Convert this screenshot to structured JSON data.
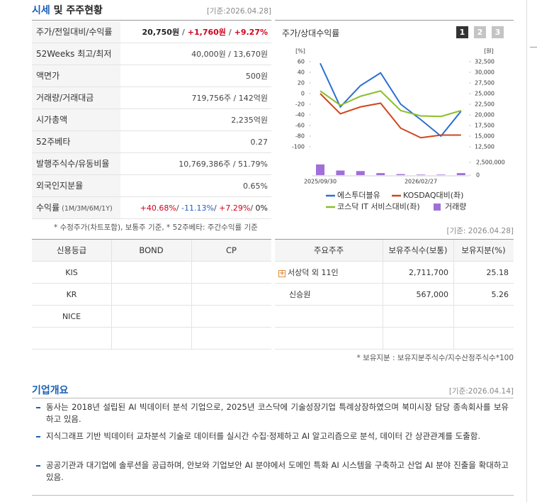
{
  "header": {
    "title_main": "시세",
    "title_rest": "및 주주현황",
    "date": "[기준:2026.04.28]"
  },
  "price_table": {
    "rows": [
      {
        "label": "주가/전일대비/수익률",
        "value": [
          {
            "text": "20,750원",
            "color": "#222222"
          },
          {
            "text": " / ",
            "color": "#666666"
          },
          {
            "text": "+1,760원",
            "color": "#d0021b"
          },
          {
            "text": " / ",
            "color": "#666666"
          },
          {
            "text": "+9.27%",
            "color": "#d0021b"
          }
        ]
      },
      {
        "label": "52Weeks 최고/최저",
        "value": [
          {
            "text": "40,000원 / 13,670원",
            "color": "#444444"
          }
        ]
      },
      {
        "label": "액면가",
        "value": [
          {
            "text": "500원",
            "color": "#444444"
          }
        ]
      },
      {
        "label": "거래량/거래대금",
        "value": [
          {
            "text": "719,756주 / 142억원",
            "color": "#444444"
          }
        ]
      },
      {
        "label": "시가총액",
        "value": [
          {
            "text": "2,235억원",
            "color": "#444444"
          }
        ]
      },
      {
        "label": "52주베타",
        "value": [
          {
            "text": "0.27",
            "color": "#444444"
          }
        ]
      },
      {
        "label": "발행주식수/유동비율",
        "value": [
          {
            "text": "10,769,386주 / 51.79%",
            "color": "#444444"
          }
        ]
      },
      {
        "label": "외국인지분율",
        "value": [
          {
            "text": "0.65%",
            "color": "#444444"
          }
        ]
      },
      {
        "label": "수익률",
        "label_sub": "(1M/3M/6M/1Y)",
        "value": [
          {
            "text": "+40.68%",
            "color": "#d0021b"
          },
          {
            "text": "/ ",
            "color": "#444444"
          },
          {
            "text": "-11.13%",
            "color": "#1f5fc8"
          },
          {
            "text": "/ ",
            "color": "#444444"
          },
          {
            "text": "+7.29%",
            "color": "#d0021b"
          },
          {
            "text": "/ ",
            "color": "#444444"
          },
          {
            "text": "0%",
            "color": "#222222"
          }
        ]
      }
    ],
    "note": "* 수정주가(차트포함), 보통주 기준, * 52주베타: 주간수익률 기준"
  },
  "chart_panel": {
    "title": "주가/상대수익률",
    "buttons": [
      "1",
      "2",
      "3"
    ],
    "date": "[기준: 2026.04.28]"
  },
  "chart_data": {
    "type": "line",
    "y_unit": "[%]",
    "y2_unit": "[원]",
    "categories": [
      "2025/09/30",
      null,
      null,
      null,
      null,
      "2026/02/27",
      null,
      null
    ],
    "ylim": [
      -100,
      60
    ],
    "yticks": [
      60,
      40,
      20,
      0,
      -20,
      -40,
      -60,
      -80,
      -100
    ],
    "y2lim": [
      12500,
      32500
    ],
    "y2ticks": [
      {
        "value": 32500,
        "label": "32,500"
      },
      {
        "value": 30000,
        "label": "30,000"
      },
      {
        "value": 27500,
        "label": "27,500"
      },
      {
        "value": 25000,
        "label": "25,000"
      },
      {
        "value": 22500,
        "label": "22,500"
      },
      {
        "value": 20000,
        "label": "20,000"
      },
      {
        "value": 17500,
        "label": "17,500"
      },
      {
        "value": 15000,
        "label": "15,000"
      },
      {
        "value": 12500,
        "label": "12,500"
      }
    ],
    "volume_lim": [
      0,
      3000000
    ],
    "volume_ticks": [
      {
        "value": 2500000,
        "label": "2,500,000"
      },
      0
    ],
    "series": [
      {
        "name": "에스투더블유",
        "color": "#2b6fd1",
        "values": [
          57,
          -25,
          15,
          39,
          -20,
          -49,
          -80,
          -33
        ]
      },
      {
        "name": "KOSDAQ대비(좌)",
        "color": "#d0461b",
        "values": [
          0,
          -38,
          -25,
          -18,
          -65,
          -83,
          -78,
          -78
        ]
      },
      {
        "name": "코스닥 IT 서비스대비(좌)",
        "color": "#8bbf2b",
        "values": [
          5,
          -22,
          -5,
          5,
          -32,
          -42,
          -43,
          -32
        ]
      },
      {
        "name": "거래량",
        "color": "#a070d8",
        "type": "bar",
        "axis": "volume",
        "values": [
          2100000,
          900000,
          800000,
          400000,
          200000,
          100000,
          100000,
          400000
        ]
      }
    ]
  },
  "credit_table": {
    "headers": [
      "신용등급",
      "BOND",
      "CP"
    ],
    "rows": [
      [
        "KIS"
      ],
      [
        "KR"
      ],
      [
        "NICE"
      ]
    ]
  },
  "holders_table": {
    "headers": [
      "주요주주",
      "보유주식수(보통)",
      "보유지분(%)"
    ],
    "rows": [
      [
        "서상덕 외 11인",
        "2,711,700",
        "25.18"
      ],
      [
        "신승원",
        "567,000",
        "5.26"
      ]
    ],
    "note": "* 보유지분 : 보유지분주식수/지수산정주식수*100"
  },
  "overview": {
    "title": "기업개요",
    "date": "[기준:2026.04.14]",
    "items": [
      "동사는 2018년 설립된 AI 빅데이터 분석 기업으로, 2025년 코스닥에 기술성장기업 특례상장하였으며 북미시장 담당 종속회사를 보유하고 있음.",
      "지식그래프 기반 빅데이터 교차분석 기술로 데이터를 실시간 수집·정제하고 AI 알고리즘으로 분석, 데이터 간 상관관계를 도출함.",
      "공공기관과 대기업에 솔루션을 공급하며, 안보와 기업보안 AI 분야에서 도메인 특화 AI 시스템을 구축하고 산업 AI 분야 진출을 확대하고 있음."
    ]
  }
}
